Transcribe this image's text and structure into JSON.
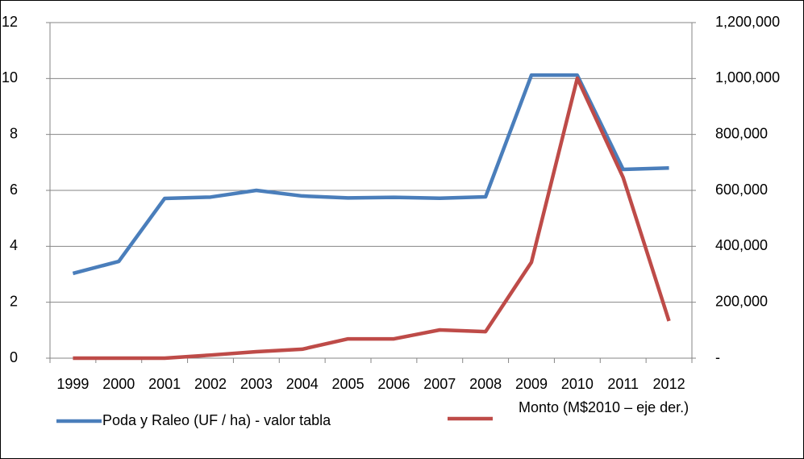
{
  "chart_data": {
    "type": "line",
    "categories": [
      "1999",
      "2000",
      "2001",
      "2002",
      "2003",
      "2004",
      "2005",
      "2006",
      "2007",
      "2008",
      "2009",
      "2010",
      "2011",
      "2012"
    ],
    "series": [
      {
        "name": "Poda y Raleo (UF / ha) - valor tabla",
        "color": "#4a7ebb",
        "values": [
          3.03,
          3.46,
          5.71,
          5.76,
          6.0,
          5.8,
          5.73,
          5.75,
          5.72,
          5.77,
          10.12,
          10.12,
          6.75,
          6.8
        ]
      },
      {
        "name": "Monto (M$2010 – eje der.)",
        "color": "#be4b48",
        "axis": "y2",
        "values": [
          0,
          0,
          0,
          11000,
          23000,
          32000,
          69000,
          69000,
          101000,
          95000,
          343000,
          1001000,
          646000,
          133000
        ]
      }
    ],
    "ylim": [
      0,
      12
    ],
    "yticks": [
      0,
      2,
      4,
      6,
      8,
      10,
      12
    ],
    "y2lim": [
      0,
      1200000
    ],
    "y2ticks": [
      {
        "value": 0,
        "label": "-"
      },
      {
        "value": 200000,
        "label": "200,000"
      },
      {
        "value": 400000,
        "label": "400,000"
      },
      {
        "value": 600000,
        "label": "600,000"
      },
      {
        "value": 800000,
        "label": "800,000"
      },
      {
        "value": 1000000,
        "label": "1,000,000"
      },
      {
        "value": 1200000,
        "label": "1,200,000"
      }
    ],
    "grid": true,
    "legend": "bottom"
  }
}
